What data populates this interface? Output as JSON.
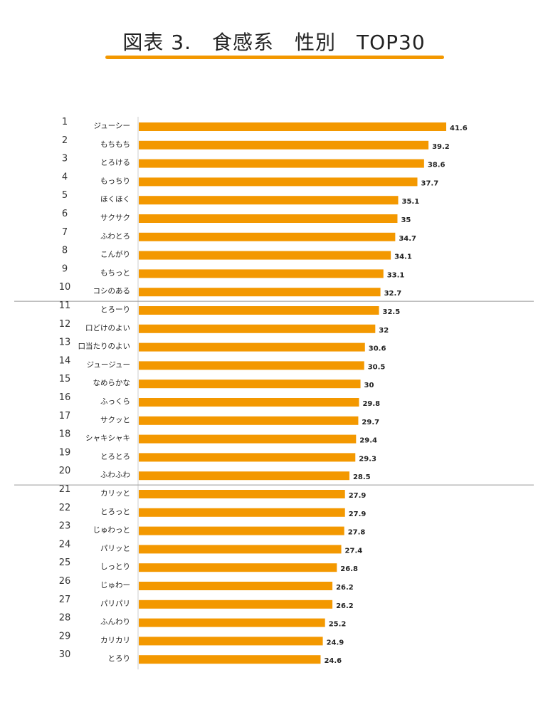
{
  "title": "図表 3.　食感系　性別　TOP30",
  "colors": {
    "bar": "#F39800",
    "accent": "#F39800",
    "separator": "#999999",
    "axis": "#cccccc"
  },
  "chart_data": {
    "type": "bar",
    "orientation": "horizontal",
    "title": "図表 3.　食感系　性別　TOP30",
    "ranks": [
      1,
      2,
      3,
      4,
      5,
      6,
      7,
      8,
      9,
      10,
      11,
      12,
      13,
      14,
      15,
      16,
      17,
      18,
      19,
      20,
      21,
      22,
      23,
      24,
      25,
      26,
      27,
      28,
      29,
      30
    ],
    "categories": [
      "ジューシー",
      "もちもち",
      "とろける",
      "もっちり",
      "ほくほく",
      "サクサク",
      "ふわとろ",
      "こんがり",
      "もちっと",
      "コシのある",
      "とろーり",
      "口どけのよい",
      "口当たりのよい",
      "ジュージュー",
      "なめらかな",
      "ふっくら",
      "サクッと",
      "シャキシャキ",
      "とろとろ",
      "ふわふわ",
      "カリッと",
      "とろっと",
      "じゅわっと",
      "パリッと",
      "しっとり",
      "じゅわー",
      "パリパリ",
      "ふんわり",
      "カリカリ",
      "とろり"
    ],
    "values": [
      41.6,
      39.2,
      38.6,
      37.7,
      35.1,
      35,
      34.7,
      34.1,
      33.1,
      32.7,
      32.5,
      32,
      30.6,
      30.5,
      30,
      29.8,
      29.7,
      29.4,
      29.3,
      28.5,
      27.9,
      27.9,
      27.8,
      27.4,
      26.8,
      26.2,
      26.2,
      25.2,
      24.9,
      24.6
    ],
    "xlim": [
      0,
      41.6
    ],
    "grid": false,
    "legend": "none",
    "group_separators_after_rank": [
      10,
      20
    ]
  }
}
